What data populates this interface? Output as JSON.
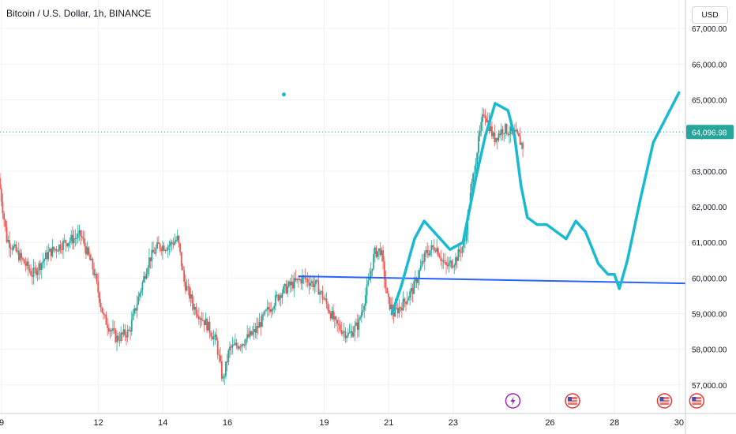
{
  "header": {
    "title": "Bitcoin / U.S. Dollar, 1h, BINANCE",
    "currency_button": "USD"
  },
  "chart_data": {
    "type": "candlestick",
    "symbol": "Bitcoin / U.S. Dollar",
    "interval": "1h",
    "exchange": "BINANCE",
    "x_tick_labels": [
      "9",
      "12",
      "14",
      "16",
      "19",
      "21",
      "23",
      "26",
      "28",
      "30"
    ],
    "x_tick_days": [
      9,
      12,
      14,
      16,
      19,
      21,
      23,
      26,
      28,
      30
    ],
    "x_range_days": [
      8.95,
      30.2
    ],
    "y_tick_values": [
      57000,
      58000,
      59000,
      60000,
      61000,
      62000,
      63000,
      64000,
      65000,
      66000,
      67000
    ],
    "y_tick_labels": [
      "57,000.00",
      "58,000.00",
      "59,000.00",
      "60,000.00",
      "61,000.00",
      "62,000.00",
      "63,000.00",
      "64,000.00",
      "65,000.00",
      "66,000.00",
      "67,000.00"
    ],
    "ylim": [
      56200,
      67800
    ],
    "current_price": 64096.98,
    "current_price_label": "64,096.98",
    "price_path": [
      [
        8.95,
        62800
      ],
      [
        9.2,
        61100
      ],
      [
        9.6,
        60600
      ],
      [
        10.0,
        60100
      ],
      [
        10.5,
        60700
      ],
      [
        11.0,
        61000
      ],
      [
        11.5,
        61200
      ],
      [
        11.9,
        60200
      ],
      [
        12.2,
        58900
      ],
      [
        12.6,
        58300
      ],
      [
        13.0,
        58500
      ],
      [
        13.3,
        59500
      ],
      [
        13.6,
        60500
      ],
      [
        13.9,
        60900
      ],
      [
        14.2,
        60900
      ],
      [
        14.5,
        61100
      ],
      [
        14.7,
        59900
      ],
      [
        15.0,
        59200
      ],
      [
        15.4,
        58700
      ],
      [
        15.7,
        58200
      ],
      [
        15.9,
        57100
      ],
      [
        16.1,
        58000
      ],
      [
        16.5,
        58200
      ],
      [
        16.9,
        58500
      ],
      [
        17.3,
        59100
      ],
      [
        17.7,
        59600
      ],
      [
        18.0,
        59800
      ],
      [
        18.4,
        60000
      ],
      [
        18.8,
        59800
      ],
      [
        19.1,
        59300
      ],
      [
        19.4,
        58700
      ],
      [
        19.8,
        58400
      ],
      [
        20.1,
        58700
      ],
      [
        20.4,
        59800
      ],
      [
        20.6,
        60700
      ],
      [
        20.8,
        60800
      ],
      [
        21.0,
        59400
      ],
      [
        21.2,
        59000
      ],
      [
        21.5,
        59300
      ],
      [
        21.8,
        59700
      ],
      [
        22.0,
        60200
      ],
      [
        22.2,
        60700
      ],
      [
        22.5,
        60900
      ],
      [
        22.8,
        60300
      ],
      [
        23.1,
        60500
      ],
      [
        23.4,
        61000
      ],
      [
        23.6,
        62500
      ],
      [
        23.8,
        63700
      ],
      [
        24.0,
        64700
      ],
      [
        24.3,
        63900
      ],
      [
        24.6,
        64200
      ],
      [
        25.0,
        64000
      ],
      [
        25.2,
        63700
      ]
    ],
    "blue_trendline": [
      [
        18.2,
        60050
      ],
      [
        30.2,
        59850
      ]
    ],
    "projection_path": [
      [
        21.1,
        59000
      ],
      [
        21.4,
        59800
      ],
      [
        21.8,
        61100
      ],
      [
        22.1,
        61600
      ],
      [
        22.6,
        61100
      ],
      [
        22.9,
        60800
      ],
      [
        23.3,
        61000
      ],
      [
        23.7,
        62800
      ],
      [
        24.0,
        64000
      ],
      [
        24.3,
        64900
      ],
      [
        24.7,
        64700
      ],
      [
        24.9,
        64000
      ],
      [
        25.1,
        62600
      ],
      [
        25.3,
        61700
      ],
      [
        25.6,
        61500
      ],
      [
        25.9,
        61500
      ],
      [
        26.2,
        61300
      ],
      [
        26.5,
        61100
      ],
      [
        26.8,
        61600
      ],
      [
        27.1,
        61300
      ],
      [
        27.5,
        60400
      ],
      [
        27.8,
        60100
      ],
      [
        28.0,
        60100
      ],
      [
        28.15,
        59700
      ],
      [
        28.4,
        60500
      ],
      [
        28.8,
        62200
      ],
      [
        29.2,
        63800
      ],
      [
        29.6,
        64500
      ],
      [
        30.0,
        65200
      ]
    ],
    "dot_point": [
      17.75,
      65150
    ],
    "event_markers": [
      {
        "day": 24.85,
        "kind": "lightning-icon"
      },
      {
        "day": 26.7,
        "kind": "us-flag-icon"
      },
      {
        "day": 29.55,
        "kind": "us-flag-icon"
      },
      {
        "day": 30.55,
        "kind": "us-flag-icon"
      }
    ],
    "colors": {
      "up_candle": "#26a69a",
      "down_candle": "#ef5350",
      "trendline": "#2962ff",
      "projection": "#19b9d1",
      "price_badge": "#26a69a",
      "grid": "#eef0f3"
    },
    "grid": true
  }
}
